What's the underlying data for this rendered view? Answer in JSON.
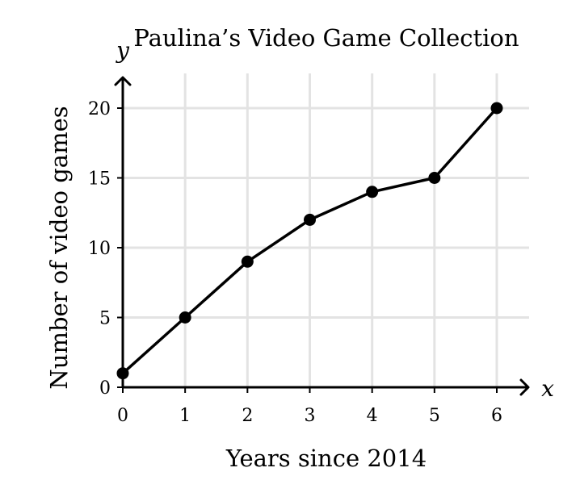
{
  "chart_data": {
    "type": "line",
    "title": "Paulina’s Video Game Collection",
    "xlabel": "Years since 2014",
    "ylabel": "Number of video games",
    "x_axis_var": "x",
    "y_axis_var": "y",
    "x": [
      0,
      1,
      2,
      3,
      4,
      5,
      6
    ],
    "series": [
      {
        "values": [
          1,
          5,
          9,
          12,
          14,
          15,
          20
        ]
      }
    ],
    "xlim": [
      0,
      6
    ],
    "ylim": [
      0,
      20
    ],
    "x_ticks": [
      "0",
      "1",
      "2",
      "3",
      "4",
      "5",
      "6"
    ],
    "y_ticks": [
      "0",
      "5",
      "10",
      "15",
      "20"
    ],
    "grid": true,
    "markers": true,
    "colors": {
      "line": "#000000",
      "grid": "#e3e3e3",
      "axis": "#000000"
    }
  }
}
